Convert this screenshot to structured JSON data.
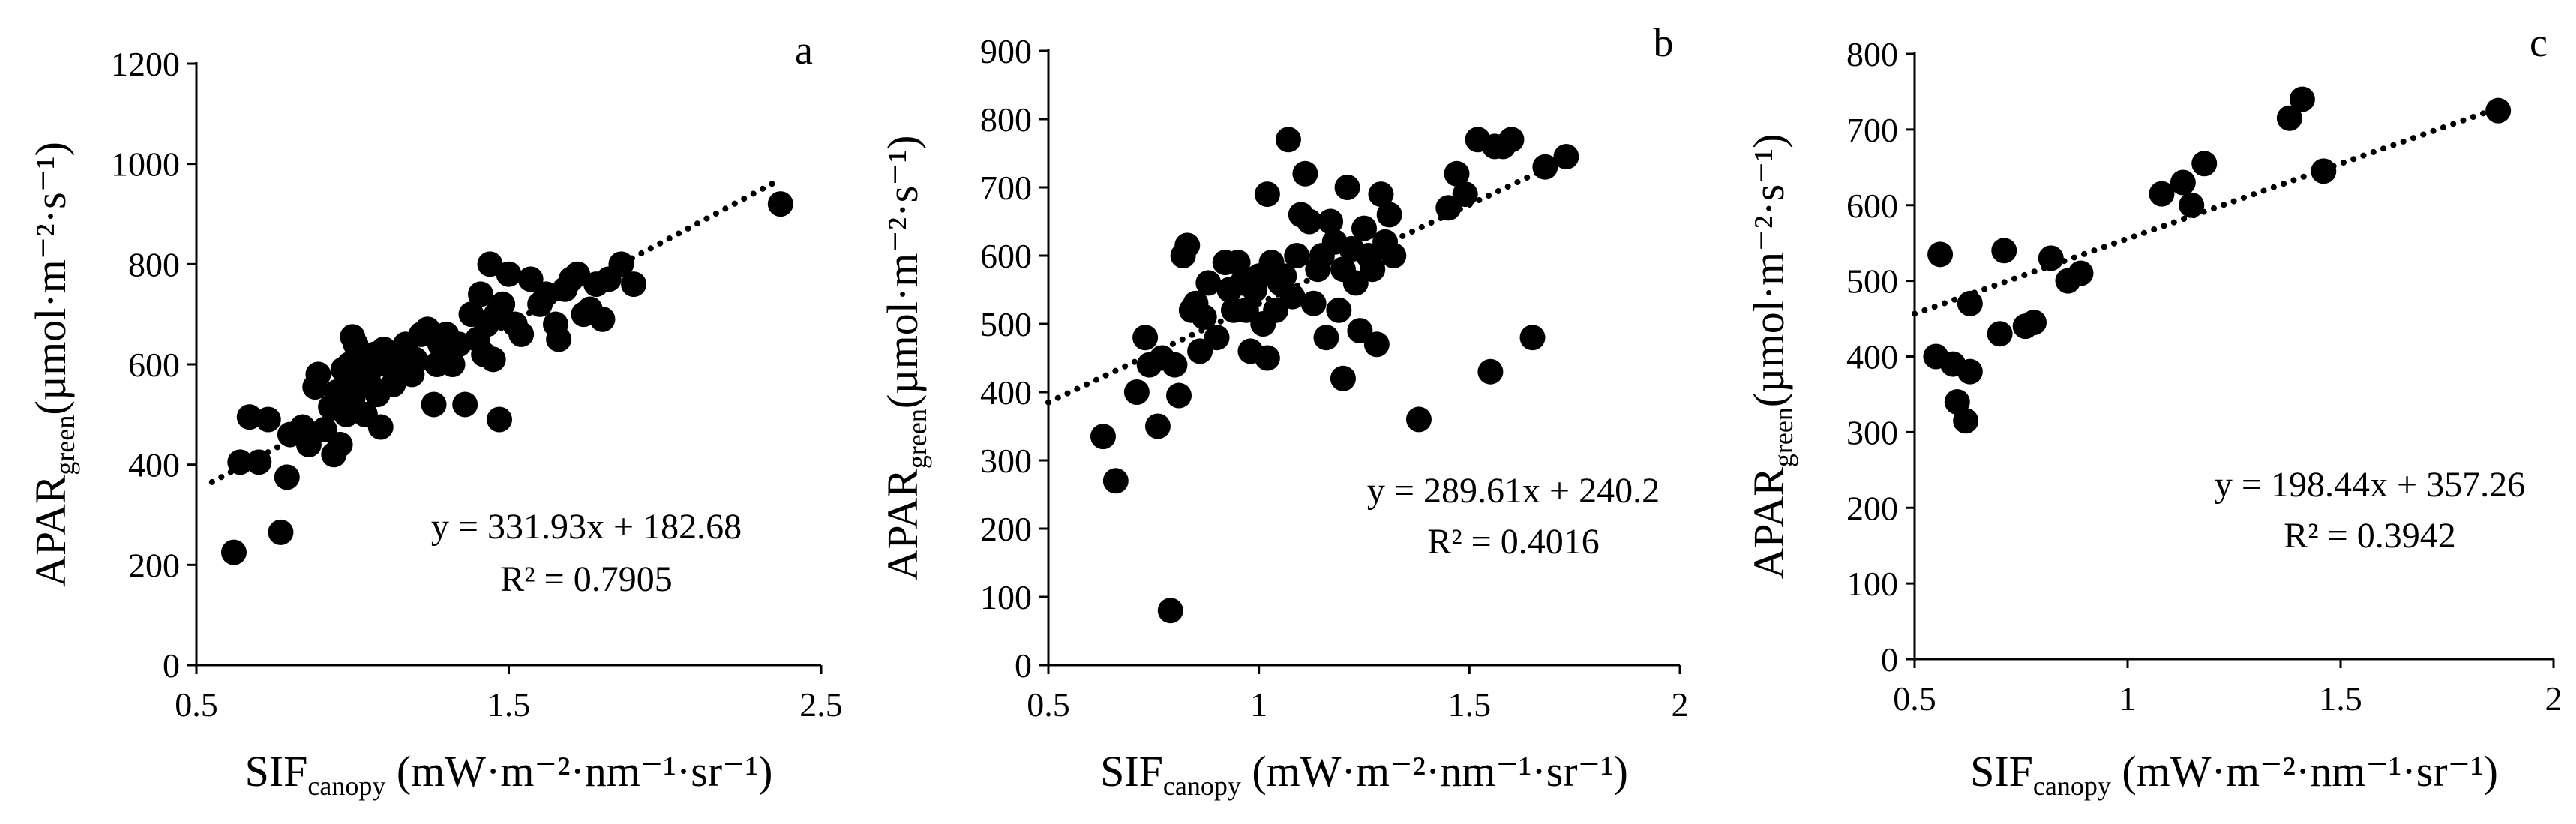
{
  "chart_data": [
    {
      "type": "scatter",
      "panel": "a",
      "xlabel": {
        "main": "SIF",
        "sub": "canopy",
        "unit": " (mW·m⁻²·nm⁻¹·sr⁻¹)"
      },
      "ylabel": {
        "main": "APAR",
        "sub": "green",
        "unit": "(µmol·m⁻²·s⁻¹)"
      },
      "xlim": [
        0.5,
        2.5
      ],
      "ylim": [
        0,
        1200
      ],
      "xticks": [
        "0.5",
        "1.5",
        "2.5"
      ],
      "yticks": [
        "0",
        "200",
        "400",
        "600",
        "800",
        "1000",
        "1200"
      ],
      "trendline": {
        "slope": 331.93,
        "intercept": 182.68,
        "x_range": [
          0.55,
          2.37
        ],
        "style": "dotted"
      },
      "equation": "y = 331.93x + 182.68",
      "r2": "R² = 0.7905",
      "points": [
        [
          0.62,
          225
        ],
        [
          0.64,
          405
        ],
        [
          0.67,
          495
        ],
        [
          0.7,
          405
        ],
        [
          0.73,
          490
        ],
        [
          0.77,
          265
        ],
        [
          0.79,
          375
        ],
        [
          0.8,
          460
        ],
        [
          0.84,
          475
        ],
        [
          0.86,
          440
        ],
        [
          0.88,
          555
        ],
        [
          0.89,
          580
        ],
        [
          0.91,
          470
        ],
        [
          0.93,
          515
        ],
        [
          0.94,
          420
        ],
        [
          0.95,
          545
        ],
        [
          0.96,
          440
        ],
        [
          0.97,
          590
        ],
        [
          0.98,
          500
        ],
        [
          0.99,
          600
        ],
        [
          1.0,
          655
        ],
        [
          1.0,
          530
        ],
        [
          1.01,
          640
        ],
        [
          1.02,
          560
        ],
        [
          1.03,
          610
        ],
        [
          1.04,
          500
        ],
        [
          1.04,
          600
        ],
        [
          1.05,
          580
        ],
        [
          1.06,
          555
        ],
        [
          1.07,
          620
        ],
        [
          1.08,
          540
        ],
        [
          1.09,
          475
        ],
        [
          1.1,
          630
        ],
        [
          1.11,
          600
        ],
        [
          1.13,
          560
        ],
        [
          1.15,
          600
        ],
        [
          1.17,
          640
        ],
        [
          1.19,
          580
        ],
        [
          1.2,
          610
        ],
        [
          1.22,
          660
        ],
        [
          1.24,
          670
        ],
        [
          1.26,
          520
        ],
        [
          1.27,
          600
        ],
        [
          1.28,
          640
        ],
        [
          1.3,
          660
        ],
        [
          1.32,
          600
        ],
        [
          1.34,
          640
        ],
        [
          1.36,
          520
        ],
        [
          1.38,
          700
        ],
        [
          1.4,
          650
        ],
        [
          1.41,
          740
        ],
        [
          1.42,
          620
        ],
        [
          1.43,
          680
        ],
        [
          1.44,
          800
        ],
        [
          1.45,
          610
        ],
        [
          1.46,
          700
        ],
        [
          1.47,
          490
        ],
        [
          1.48,
          720
        ],
        [
          1.5,
          780
        ],
        [
          1.52,
          680
        ],
        [
          1.54,
          660
        ],
        [
          1.57,
          770
        ],
        [
          1.6,
          720
        ],
        [
          1.62,
          740
        ],
        [
          1.65,
          680
        ],
        [
          1.66,
          650
        ],
        [
          1.68,
          750
        ],
        [
          1.7,
          770
        ],
        [
          1.72,
          780
        ],
        [
          1.74,
          700
        ],
        [
          1.76,
          710
        ],
        [
          1.78,
          760
        ],
        [
          1.8,
          690
        ],
        [
          1.82,
          770
        ],
        [
          1.86,
          800
        ],
        [
          1.9,
          760
        ],
        [
          2.37,
          920
        ]
      ]
    },
    {
      "type": "scatter",
      "panel": "b",
      "xlabel": {
        "main": "SIF",
        "sub": "canopy",
        "unit": " (mW·m⁻²·nm⁻¹·sr⁻¹)"
      },
      "ylabel": {
        "main": "APAR",
        "sub": "green",
        "unit": "(µmol·m⁻²·s⁻¹)"
      },
      "xlim": [
        0.5,
        2
      ],
      "ylim": [
        0,
        900
      ],
      "xticks": [
        "0.5",
        "1",
        "1.5",
        "2"
      ],
      "yticks": [
        "0",
        "100",
        "200",
        "300",
        "400",
        "500",
        "600",
        "700",
        "800",
        "900"
      ],
      "trendline": {
        "slope": 289.61,
        "intercept": 240.2,
        "x_range": [
          0.5,
          1.76
        ],
        "style": "dotted"
      },
      "equation": "y = 289.61x + 240.2",
      "r2": "R² = 0.4016",
      "points": [
        [
          0.63,
          335
        ],
        [
          0.66,
          270
        ],
        [
          0.71,
          400
        ],
        [
          0.73,
          480
        ],
        [
          0.74,
          440
        ],
        [
          0.76,
          350
        ],
        [
          0.77,
          450
        ],
        [
          0.79,
          80
        ],
        [
          0.8,
          440
        ],
        [
          0.81,
          395
        ],
        [
          0.82,
          600
        ],
        [
          0.83,
          615
        ],
        [
          0.84,
          520
        ],
        [
          0.85,
          530
        ],
        [
          0.86,
          460
        ],
        [
          0.87,
          510
        ],
        [
          0.88,
          560
        ],
        [
          0.9,
          480
        ],
        [
          0.92,
          590
        ],
        [
          0.93,
          550
        ],
        [
          0.94,
          520
        ],
        [
          0.95,
          590
        ],
        [
          0.96,
          560
        ],
        [
          0.97,
          520
        ],
        [
          0.98,
          460
        ],
        [
          0.99,
          550
        ],
        [
          1.0,
          570
        ],
        [
          1.01,
          500
        ],
        [
          1.02,
          450
        ],
        [
          1.02,
          690
        ],
        [
          1.03,
          590
        ],
        [
          1.04,
          520
        ],
        [
          1.05,
          560
        ],
        [
          1.06,
          570
        ],
        [
          1.07,
          770
        ],
        [
          1.08,
          540
        ],
        [
          1.09,
          600
        ],
        [
          1.1,
          660
        ],
        [
          1.11,
          720
        ],
        [
          1.12,
          650
        ],
        [
          1.13,
          530
        ],
        [
          1.14,
          580
        ],
        [
          1.15,
          600
        ],
        [
          1.16,
          480
        ],
        [
          1.17,
          650
        ],
        [
          1.18,
          620
        ],
        [
          1.19,
          520
        ],
        [
          1.2,
          580
        ],
        [
          1.2,
          420
        ],
        [
          1.21,
          700
        ],
        [
          1.22,
          610
        ],
        [
          1.23,
          560
        ],
        [
          1.24,
          490
        ],
        [
          1.25,
          640
        ],
        [
          1.26,
          600
        ],
        [
          1.27,
          580
        ],
        [
          1.28,
          470
        ],
        [
          1.29,
          690
        ],
        [
          1.3,
          620
        ],
        [
          1.31,
          660
        ],
        [
          1.32,
          600
        ],
        [
          1.38,
          360
        ],
        [
          1.45,
          670
        ],
        [
          1.47,
          720
        ],
        [
          1.49,
          690
        ],
        [
          1.52,
          770
        ],
        [
          1.55,
          430
        ],
        [
          1.56,
          760
        ],
        [
          1.58,
          760
        ],
        [
          1.6,
          770
        ],
        [
          1.65,
          480
        ],
        [
          1.68,
          730
        ],
        [
          1.73,
          745
        ]
      ]
    },
    {
      "type": "scatter",
      "panel": "c",
      "xlabel": {
        "main": "SIF",
        "sub": "canopy",
        "unit": " (mW·m⁻²·nm⁻¹·sr⁻¹)"
      },
      "ylabel": {
        "main": "APAR",
        "sub": "green",
        "unit": "(µmol·m⁻²·s⁻¹)"
      },
      "xlim": [
        0.5,
        2
      ],
      "ylim": [
        0,
        800
      ],
      "xticks": [
        "0.5",
        "1",
        "1.5",
        "2"
      ],
      "yticks": [
        "0",
        "100",
        "200",
        "300",
        "400",
        "500",
        "600",
        "700",
        "800"
      ],
      "trendline": {
        "slope": 198.44,
        "intercept": 357.26,
        "x_range": [
          0.5,
          1.88
        ],
        "style": "dotted"
      },
      "equation": "y = 198.44x + 357.26",
      "r2": "R² = 0.3942",
      "points": [
        [
          0.55,
          400
        ],
        [
          0.56,
          535
        ],
        [
          0.59,
          390
        ],
        [
          0.6,
          340
        ],
        [
          0.62,
          315
        ],
        [
          0.63,
          380
        ],
        [
          0.63,
          470
        ],
        [
          0.7,
          430
        ],
        [
          0.71,
          540
        ],
        [
          0.76,
          440
        ],
        [
          0.78,
          445
        ],
        [
          0.82,
          530
        ],
        [
          0.86,
          500
        ],
        [
          0.89,
          510
        ],
        [
          1.08,
          615
        ],
        [
          1.13,
          630
        ],
        [
          1.15,
          600
        ],
        [
          1.18,
          655
        ],
        [
          1.38,
          715
        ],
        [
          1.41,
          740
        ],
        [
          1.46,
          645
        ],
        [
          1.87,
          725
        ]
      ]
    }
  ]
}
